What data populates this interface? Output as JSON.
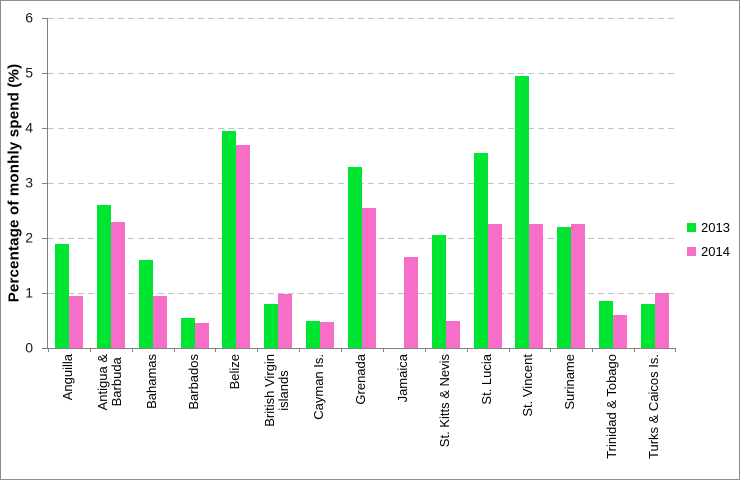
{
  "chart_data": {
    "type": "bar",
    "title": "",
    "xlabel": "",
    "ylabel": "Percentage of monhly spend (%)",
    "ylim": [
      0,
      6
    ],
    "yticks": [
      0,
      1,
      2,
      3,
      4,
      5,
      6
    ],
    "grid": "horizontal-dashed",
    "legend_position": "right",
    "categories": [
      "Anguilla",
      "Antigua &\nBarbuda",
      "Bahamas",
      "Barbados",
      "Belize",
      "British Virgin\nislands",
      "Cayman Is.",
      "Grenada",
      "Jamaica",
      "St. Kitts & Nevis",
      "St. Lucia",
      "St. Vincent",
      "Suriname",
      "Trinidad & Tobago",
      "Turks & Caicos Is."
    ],
    "series": [
      {
        "name": "2013",
        "color": "#00E432",
        "values": [
          1.9,
          2.6,
          1.6,
          0.55,
          3.95,
          0.8,
          0.5,
          3.3,
          0,
          2.05,
          3.55,
          4.95,
          2.2,
          0.85,
          0.8
        ]
      },
      {
        "name": "2014",
        "color": "#F76EC9",
        "values": [
          0.95,
          2.3,
          0.95,
          0.45,
          3.7,
          0.98,
          0.48,
          2.55,
          1.65,
          0.5,
          2.25,
          2.25,
          2.25,
          0.6,
          1.0
        ]
      }
    ],
    "colors": {
      "gridline": "#C3C3C3",
      "axis": "#808080",
      "frame_border": "#8C8C8C",
      "text": "#1A1A1A"
    }
  }
}
